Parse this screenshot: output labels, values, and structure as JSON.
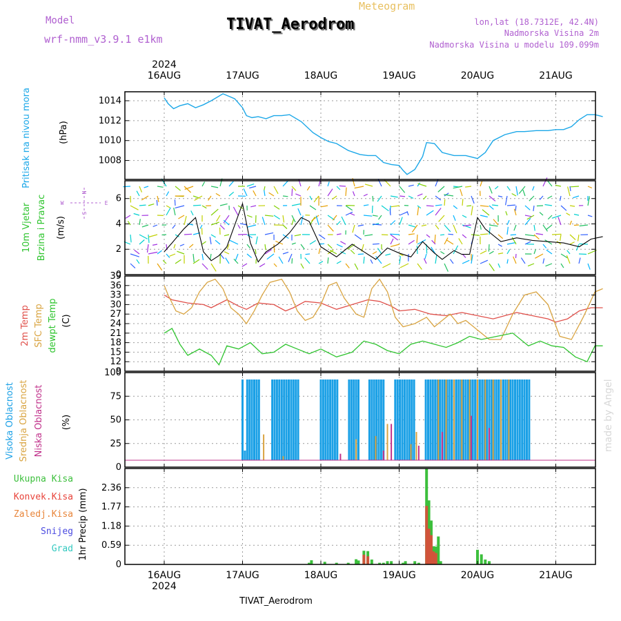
{
  "header": {
    "model_label": "Model",
    "model_name": "wrf-nmm_v3.9.1 e1km",
    "title": "TIVAT_Aerodrom",
    "subtitle": "Meteogram",
    "coords": "lon,lat (18.7312E, 42.4N)",
    "elevation": "Nadmorska Visina 2m",
    "model_elevation": "Nadmorska Visina u modelu 109.099m",
    "year_top": "2024",
    "year_bottom": "2024",
    "footer": "TIVAT_Aerodrom",
    "watermark": "made by Angel"
  },
  "compass": {
    "n": "N",
    "s": "S",
    "e": "E",
    "w": "W"
  },
  "panel_labels": {
    "pressure": [
      "Pritisak na nivou mora",
      "(hPa)"
    ],
    "wind": [
      "10m Vjetar",
      "Brzina i Pravac",
      "(m/s)"
    ],
    "temp": [
      "2m Temp",
      "SFC Temp",
      "dewpt Temp",
      "(C)"
    ],
    "cloud": [
      "Visoka Oblacnost",
      "Srednja Oblacnost",
      "Niska Oblacnost",
      "(%)"
    ],
    "precip": [
      "Ukupna Kisa",
      "Konvek.Kisa",
      "Zaledj.Kisa",
      "Snijeg",
      "Grad",
      "1hr Precip (mm)"
    ]
  },
  "colors": {
    "pressure": "#1aa7e8",
    "wind_speed": "#000000",
    "gust": "#e8433a",
    "temp2m": "#e0504a",
    "sfc_temp": "#d9a441",
    "dewpt": "#2ec42e",
    "cloud_high": "#1aa0e6",
    "cloud_mid": "#d9a441",
    "cloud_low": "#c0308a",
    "precip_total": "#3cbf3c",
    "precip_conv": "#e8433a",
    "precip_frz": "#e8853a",
    "snow": "#4a4ae0",
    "hail": "#33c9c0",
    "title": "#000000",
    "meta": "#b060d0"
  },
  "chart_data": [
    {
      "type": "line",
      "name": "pressure",
      "x_ticks": [
        "16AUG",
        "17AUG",
        "18AUG",
        "19AUG",
        "20AUG",
        "21AUG"
      ],
      "ylabel": "(hPa)",
      "y_ticks": [
        "1008",
        "1010",
        "1012",
        "1014"
      ],
      "ylim": [
        1006.1,
        1014.9
      ],
      "grid": true,
      "t": [
        0,
        0.05,
        0.12,
        0.2,
        0.3,
        0.4,
        0.5,
        0.6,
        0.75,
        0.9,
        1.0,
        1.05,
        1.12,
        1.2,
        1.3,
        1.4,
        1.5,
        1.6,
        1.75,
        1.9,
        2.0,
        2.1,
        2.2,
        2.35,
        2.5,
        2.6,
        2.7,
        2.8,
        2.9,
        3.0,
        3.05,
        3.1,
        3.2,
        3.3,
        3.35,
        3.45,
        3.55,
        3.7,
        3.85,
        4.0,
        4.1,
        4.2,
        4.35,
        4.5,
        4.6,
        4.75,
        4.9,
        5.0,
        5.1,
        5.2,
        5.3,
        5.4,
        5.5,
        5.55,
        5.6
      ],
      "values": [
        1014.3,
        1013.7,
        1013.2,
        1013.5,
        1013.7,
        1013.3,
        1013.6,
        1014.0,
        1014.7,
        1014.2,
        1013.3,
        1012.5,
        1012.3,
        1012.4,
        1012.2,
        1012.5,
        1012.5,
        1012.6,
        1011.9,
        1010.8,
        1010.3,
        1009.9,
        1009.7,
        1009.0,
        1008.6,
        1008.5,
        1008.5,
        1007.8,
        1007.6,
        1007.5,
        1007.0,
        1006.6,
        1007.1,
        1008.4,
        1009.8,
        1009.7,
        1008.8,
        1008.5,
        1008.5,
        1008.2,
        1008.8,
        1010.0,
        1010.6,
        1010.9,
        1010.9,
        1011.0,
        1011.0,
        1011.1,
        1011.1,
        1011.4,
        1012.1,
        1012.6,
        1012.6,
        1012.5,
        1012.4
      ]
    },
    {
      "type": "line",
      "name": "wind",
      "x_ticks": [
        "16AUG",
        "17AUG",
        "18AUG",
        "19AUG",
        "20AUG",
        "21AUG"
      ],
      "ylabel": "(m/s)",
      "y_ticks": [
        "0",
        "2",
        "4",
        "6"
      ],
      "ylim": [
        0,
        7.4
      ],
      "grid": true,
      "series": [
        {
          "name": "10m Vjetar",
          "t": [
            0,
            0.1,
            0.25,
            0.4,
            0.5,
            0.6,
            0.7,
            0.8,
            0.9,
            1.0,
            1.1,
            1.2,
            1.3,
            1.45,
            1.6,
            1.75,
            1.85,
            2.0,
            2.2,
            2.4,
            2.55,
            2.7,
            2.85,
            3.0,
            3.15,
            3.3,
            3.45,
            3.55,
            3.7,
            3.8,
            3.9,
            4.0,
            4.1,
            4.3,
            4.5,
            4.7,
            4.9,
            5.1,
            5.3,
            5.45,
            5.6
          ],
          "values": [
            1.8,
            2.5,
            3.6,
            4.5,
            1.8,
            1.1,
            1.5,
            2.2,
            3.9,
            5.6,
            2.5,
            1.0,
            1.8,
            2.4,
            3.3,
            4.5,
            4.2,
            2.2,
            1.4,
            2.4,
            1.8,
            1.2,
            2.1,
            1.7,
            1.4,
            2.6,
            1.7,
            1.2,
            1.9,
            1.6,
            1.6,
            4.5,
            3.6,
            2.6,
            2.9,
            2.7,
            2.6,
            2.5,
            2.2,
            2.8,
            3.0
          ]
        }
      ]
    },
    {
      "type": "line",
      "name": "temperature",
      "x_ticks": [
        "16AUG",
        "17AUG",
        "18AUG",
        "19AUG",
        "20AUG",
        "21AUG"
      ],
      "ylabel": "(C)",
      "y_ticks": [
        "9",
        "12",
        "15",
        "18",
        "21",
        "24",
        "27",
        "30",
        "33",
        "36",
        "39"
      ],
      "ylim": [
        9,
        39
      ],
      "grid": true,
      "series": [
        {
          "name": "2m Temp",
          "t": [
            0,
            0.1,
            0.3,
            0.5,
            0.6,
            0.8,
            0.95,
            1.05,
            1.2,
            1.4,
            1.55,
            1.65,
            1.8,
            2.0,
            2.2,
            2.4,
            2.6,
            2.75,
            2.9,
            3.0,
            3.2,
            3.4,
            3.6,
            3.8,
            4.0,
            4.2,
            4.35,
            4.5,
            4.7,
            4.9,
            5.0,
            5.15,
            5.3,
            5.45,
            5.6
          ],
          "values": [
            33,
            31.5,
            30.5,
            30,
            29,
            31.5,
            29.5,
            28.5,
            30.5,
            30,
            28,
            29,
            31,
            30.5,
            28.5,
            30,
            31.5,
            31,
            29.5,
            28,
            28.5,
            27,
            26.5,
            27.5,
            26.5,
            25.5,
            26.5,
            27.5,
            26.5,
            25.5,
            24.5,
            25.5,
            28,
            29,
            29
          ]
        },
        {
          "name": "SFC Temp",
          "t": [
            0,
            0.05,
            0.15,
            0.25,
            0.35,
            0.45,
            0.55,
            0.65,
            0.75,
            0.85,
            0.95,
            1.05,
            1.15,
            1.25,
            1.35,
            1.5,
            1.6,
            1.7,
            1.8,
            1.9,
            2.0,
            2.1,
            2.2,
            2.3,
            2.45,
            2.55,
            2.65,
            2.75,
            2.85,
            2.95,
            3.05,
            3.2,
            3.35,
            3.45,
            3.55,
            3.65,
            3.75,
            3.85,
            4.0,
            4.15,
            4.3,
            4.45,
            4.6,
            4.75,
            4.9,
            5.05,
            5.2,
            5.35,
            5.5,
            5.6
          ],
          "values": [
            36,
            33,
            28,
            27,
            29,
            34,
            37,
            38,
            35,
            29,
            27,
            24,
            28,
            33,
            37,
            38,
            34,
            28,
            25,
            26,
            30,
            36,
            37,
            32,
            27,
            26,
            35,
            38,
            34,
            26,
            23,
            24,
            26,
            23,
            25,
            27,
            24,
            25,
            22,
            19,
            19,
            27,
            33,
            34,
            30,
            20,
            19,
            26,
            34,
            35
          ]
        },
        {
          "name": "dewpt Temp",
          "t": [
            0,
            0.1,
            0.2,
            0.3,
            0.45,
            0.6,
            0.7,
            0.8,
            0.95,
            1.1,
            1.25,
            1.4,
            1.55,
            1.7,
            1.85,
            2.0,
            2.2,
            2.4,
            2.55,
            2.7,
            2.85,
            3.0,
            3.15,
            3.3,
            3.45,
            3.6,
            3.75,
            3.9,
            4.05,
            4.25,
            4.45,
            4.65,
            4.8,
            4.95,
            5.1,
            5.25,
            5.4,
            5.5,
            5.6
          ],
          "values": [
            21,
            22.5,
            17.5,
            14,
            16,
            14,
            11,
            17,
            16,
            18,
            14.5,
            15,
            17.5,
            16,
            14.5,
            16,
            13.5,
            15,
            18.5,
            17.5,
            15.5,
            14.5,
            17.5,
            18.5,
            17.5,
            16.5,
            18,
            20,
            19,
            20,
            21,
            17,
            18.5,
            17,
            16.5,
            13.5,
            12,
            17,
            17
          ]
        }
      ]
    },
    {
      "type": "bar",
      "name": "cloud",
      "x_ticks": [
        "16AUG",
        "17AUG",
        "18AUG",
        "19AUG",
        "20AUG",
        "21AUG"
      ],
      "ylabel": "(%)",
      "y_ticks": [
        "0",
        "25",
        "50",
        "75",
        "100"
      ],
      "ylim": [
        0,
        100
      ],
      "grid": true,
      "series": [
        {
          "name": "Visoka Oblacnost",
          "t": [
            1.0,
            1.03,
            1.06,
            1.09,
            1.12,
            1.15,
            1.18,
            1.21,
            1.38,
            1.41,
            1.44,
            1.47,
            1.5,
            1.53,
            1.56,
            1.59,
            1.62,
            1.65,
            1.68,
            1.71,
            2.0,
            2.03,
            2.06,
            2.09,
            2.12,
            2.15,
            2.18,
            2.21,
            2.36,
            2.39,
            2.42,
            2.45,
            2.48,
            2.62,
            2.65,
            2.68,
            2.71,
            2.74,
            2.77,
            2.8,
            2.95,
            2.98,
            3.01,
            3.04,
            3.07,
            3.1,
            3.13,
            3.16,
            3.19,
            3.34,
            3.37,
            3.4,
            3.43,
            3.46,
            3.49,
            3.52,
            3.55,
            3.58,
            3.61,
            3.64,
            3.67,
            3.7,
            3.73,
            3.76,
            3.79,
            3.82,
            3.85,
            3.88,
            3.91,
            3.94,
            3.97,
            4.0,
            4.03,
            4.06,
            4.09,
            4.12,
            4.15,
            4.18,
            4.21,
            4.24,
            4.27,
            4.3,
            4.33,
            4.36,
            4.39,
            4.42,
            4.45,
            4.48,
            4.51,
            4.54,
            4.57,
            4.6,
            4.63,
            4.66
          ],
          "values": [
            100,
            12,
            100,
            100,
            100,
            100,
            100,
            100,
            100,
            100,
            100,
            100,
            100,
            100,
            100,
            100,
            100,
            100,
            100,
            100,
            100,
            100,
            100,
            100,
            100,
            100,
            100,
            100,
            100,
            100,
            100,
            100,
            100,
            100,
            100,
            100,
            100,
            100,
            100,
            100,
            100,
            100,
            100,
            100,
            100,
            100,
            100,
            100,
            100,
            100,
            100,
            100,
            100,
            100,
            100,
            100,
            100,
            100,
            100,
            100,
            100,
            100,
            100,
            100,
            100,
            100,
            100,
            100,
            100,
            100,
            100,
            100,
            100,
            100,
            100,
            100,
            100,
            100,
            100,
            100,
            100,
            100,
            100,
            100,
            100,
            100,
            100,
            100,
            100,
            100,
            100,
            100,
            100,
            100
          ]
        },
        {
          "name": "Srednja Oblacnost",
          "t": [
            1.27,
            1.52,
            2.45,
            2.7,
            2.85,
            3.15,
            3.22,
            3.5,
            3.6,
            3.7,
            3.8,
            3.9,
            4.0,
            4.1,
            4.2,
            4.3,
            4.4
          ],
          "values": [
            32,
            5,
            26,
            30,
            45,
            20,
            35,
            100,
            100,
            100,
            100,
            100,
            100,
            100,
            100,
            100,
            100
          ]
        },
        {
          "name": "Niska Oblacnost",
          "t": [
            2.25,
            2.8,
            2.9,
            3.25,
            3.55,
            3.92,
            4.15
          ],
          "values": [
            8,
            12,
            45,
            18,
            35,
            55,
            40
          ]
        }
      ]
    },
    {
      "type": "bar",
      "name": "precip",
      "x_ticks": [
        "16AUG",
        "17AUG",
        "18AUG",
        "19AUG",
        "20AUG",
        "21AUG"
      ],
      "ylabel": "1hr Precip (mm)",
      "y_ticks": [
        "0",
        "0.59",
        "1.18",
        "1.77",
        "2.36"
      ],
      "ylim": [
        0,
        2.95
      ],
      "grid": true,
      "series": [
        {
          "name": "Ukupna Kisa",
          "t": [
            1.85,
            1.88,
            2.05,
            2.2,
            2.35,
            2.45,
            2.48,
            2.55,
            2.6,
            2.65,
            2.75,
            2.8,
            2.85,
            2.9,
            3.05,
            3.08,
            3.2,
            3.25,
            3.35,
            3.38,
            3.41,
            3.44,
            3.47,
            3.5,
            3.53,
            4.0,
            4.05,
            4.1,
            4.15
          ],
          "values": [
            0.05,
            0.13,
            0.08,
            0.05,
            0.05,
            0.16,
            0.12,
            0.42,
            0.41,
            0.15,
            0.05,
            0.05,
            0.1,
            0.1,
            0.05,
            0.1,
            0.1,
            0.05,
            2.95,
            1.97,
            1.35,
            0.56,
            0.55,
            0.86,
            0.1,
            0.45,
            0.31,
            0.15,
            0.1
          ]
        },
        {
          "name": "Konvek.Kisa",
          "t": [
            2.55,
            2.6,
            3.35,
            3.38,
            3.41,
            3.44,
            3.47
          ],
          "values": [
            0.3,
            0.25,
            1.8,
            1.1,
            0.9,
            0.4,
            0.35
          ]
        }
      ]
    }
  ]
}
